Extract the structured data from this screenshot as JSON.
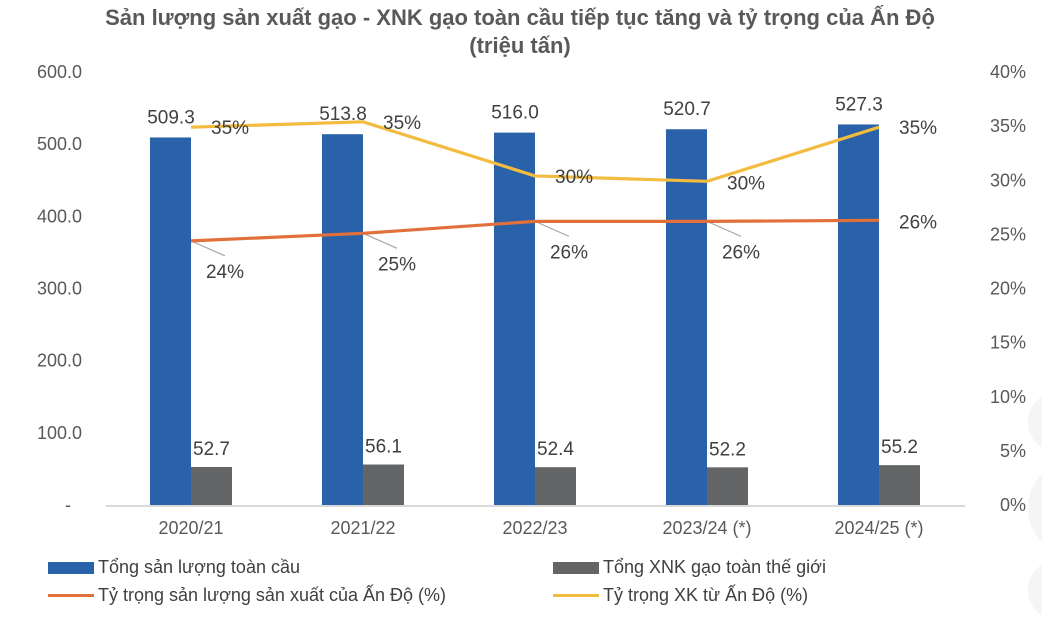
{
  "chart_data": {
    "type": "bar+line",
    "title": "Sản lượng sản xuất gạo - XNK gạo toàn cầu tiếp tục tăng và tỷ trọng của Ấn Độ (triệu tấn)",
    "categories": [
      "2020/21",
      "2021/22",
      "2022/23",
      "2023/24 (*)",
      "2024/25 (*)"
    ],
    "left_axis": {
      "ylim": [
        0,
        600
      ],
      "ticks": [
        "-",
        "100.0",
        "200.0",
        "300.0",
        "400.0",
        "500.0",
        "600.0"
      ],
      "tick_values": [
        0,
        100,
        200,
        300,
        400,
        500,
        600
      ]
    },
    "right_axis": {
      "ylim": [
        0,
        40
      ],
      "ticks": [
        "0%",
        "5%",
        "10%",
        "15%",
        "20%",
        "25%",
        "30%",
        "35%",
        "40%"
      ],
      "tick_values": [
        0,
        5,
        10,
        15,
        20,
        25,
        30,
        35,
        40
      ]
    },
    "series": [
      {
        "name": "Tổng sản lượng toàn cầu",
        "type": "bar",
        "axis": "left",
        "color": "#2a62aa",
        "values": [
          509.3,
          513.8,
          516.0,
          520.7,
          527.3
        ],
        "labels": [
          "509.3",
          "513.8",
          "516.0",
          "520.7",
          "527.3"
        ]
      },
      {
        "name": "Tổng XNK gạo toàn thế giới",
        "type": "bar",
        "axis": "left",
        "color": "#646566",
        "values": [
          52.7,
          56.1,
          52.4,
          52.2,
          55.2
        ],
        "labels": [
          "52.7",
          "56.1",
          "52.4",
          "52.2",
          "55.2"
        ]
      },
      {
        "name": "Tỷ trọng sản lượng sản xuất của Ấn Độ (%)",
        "type": "line",
        "axis": "right",
        "color": "#e2703a",
        "values": [
          24.4,
          25.1,
          26.2,
          26.2,
          26.3
        ],
        "labels": [
          "24%",
          "25%",
          "26%",
          "26%",
          "26%"
        ]
      },
      {
        "name": "Tỷ trọng XK từ Ấn Độ (%)",
        "type": "line",
        "axis": "right",
        "color": "#f3bc3f",
        "values": [
          34.9,
          35.4,
          30.4,
          29.9,
          34.9
        ],
        "labels": [
          "35%",
          "35%",
          "30%",
          "30%",
          "35%"
        ]
      }
    ],
    "legend_position": "bottom",
    "grid": false
  }
}
